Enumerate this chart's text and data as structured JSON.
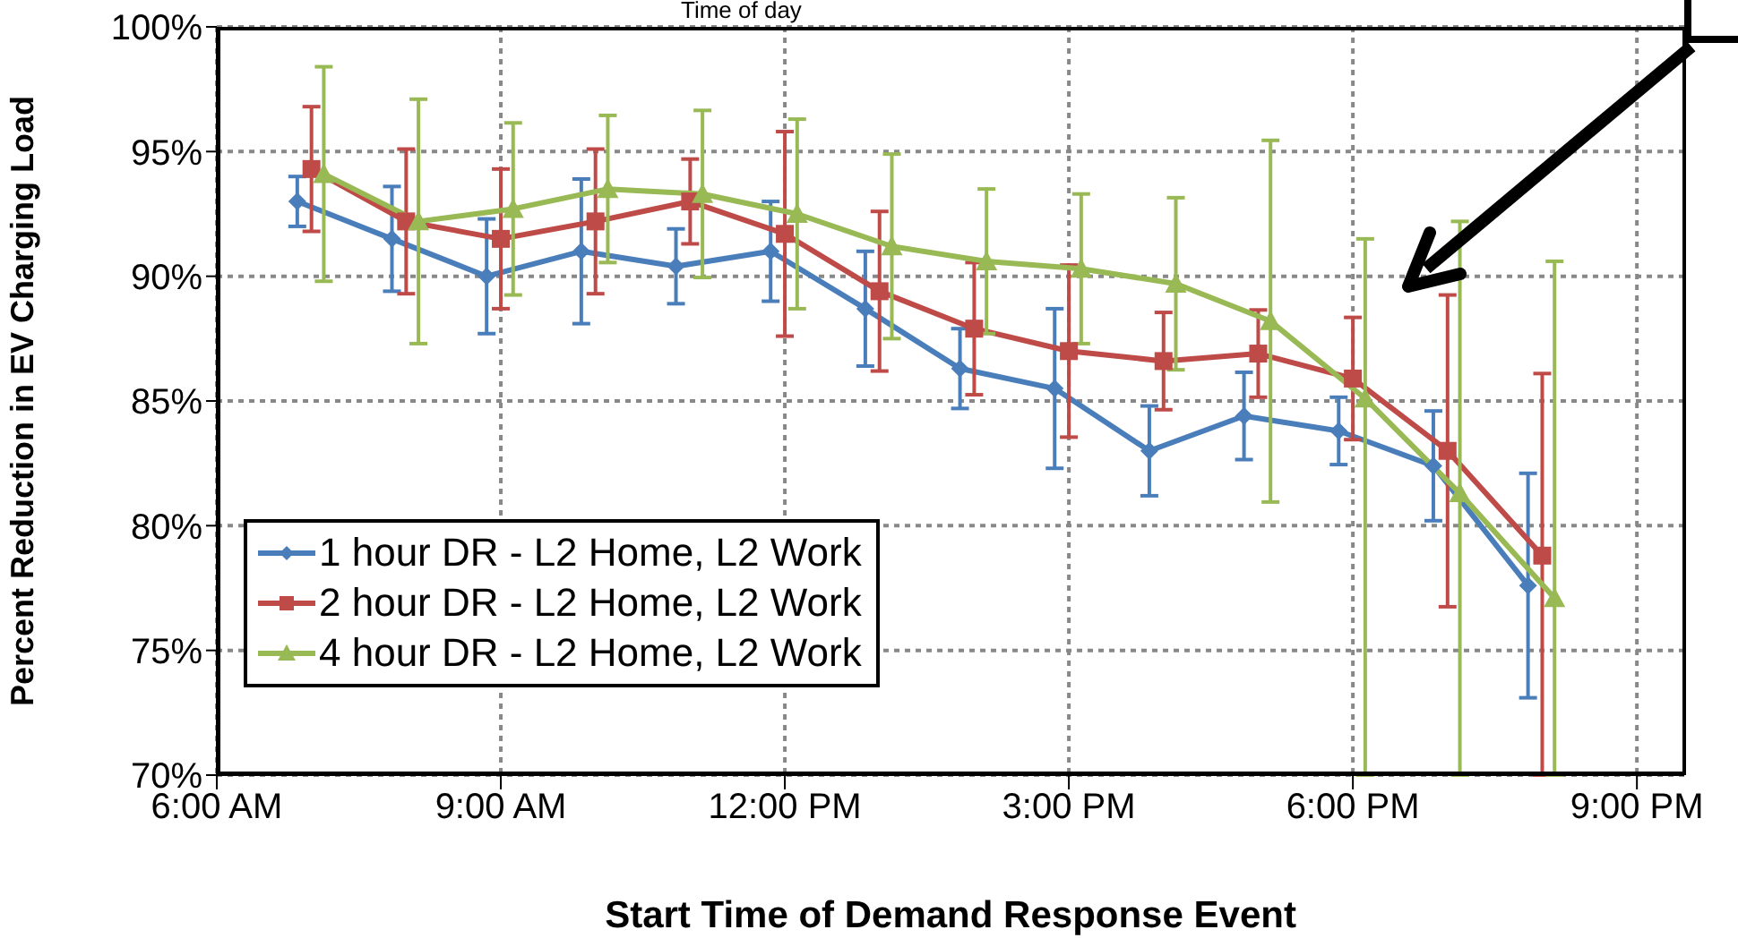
{
  "chart_data": {
    "type": "line",
    "xlabel": "Start Time of Demand Response Event",
    "ylabel": "Percent Reduction in EV Charging Load",
    "annotations": [
      "Time of day"
    ],
    "xlim": [
      6,
      21.5
    ],
    "xticks": [
      {
        "value": 6,
        "label": "6:00 AM"
      },
      {
        "value": 9,
        "label": "9:00 AM"
      },
      {
        "value": 12,
        "label": "12:00 PM"
      },
      {
        "value": 15,
        "label": "3:00 PM"
      },
      {
        "value": 18,
        "label": "6:00 PM"
      },
      {
        "value": 21,
        "label": "9:00 PM"
      }
    ],
    "ylim": [
      70,
      100
    ],
    "yticks": [
      {
        "value": 70,
        "label": "70%"
      },
      {
        "value": 75,
        "label": "75%"
      },
      {
        "value": 80,
        "label": "80%"
      },
      {
        "value": 85,
        "label": "85%"
      },
      {
        "value": 90,
        "label": "90%"
      },
      {
        "value": 95,
        "label": "95%"
      },
      {
        "value": 100,
        "label": "100%"
      }
    ],
    "grid": true,
    "legend": "bottom left",
    "series": [
      {
        "name": "1 hour DR - L2 Home, L2 Work",
        "color": "#4a7ebb",
        "marker": "diamond",
        "x": [
          6.85,
          7.85,
          8.85,
          9.85,
          10.85,
          11.85,
          12.85,
          13.85,
          14.85,
          15.85,
          16.85,
          17.85,
          18.85,
          19.85
        ],
        "values": [
          93.0,
          91.5,
          90.0,
          91.0,
          90.4,
          91.0,
          88.7,
          86.3,
          85.5,
          83.0,
          84.4,
          83.8,
          82.4,
          77.6
        ],
        "errors": [
          1.0,
          2.1,
          2.3,
          2.9,
          1.5,
          2.0,
          2.3,
          1.6,
          3.2,
          1.8,
          1.75,
          1.35,
          2.2,
          4.5
        ]
      },
      {
        "name": "2 hour DR - L2 Home, L2 Work",
        "color": "#be4b48",
        "marker": "square",
        "x": [
          7,
          8,
          9,
          10,
          11,
          12,
          13,
          14,
          15,
          16,
          17,
          18,
          19,
          20
        ],
        "values": [
          94.3,
          92.2,
          91.5,
          92.2,
          93.0,
          91.7,
          89.4,
          87.9,
          87.0,
          86.6,
          86.9,
          85.9,
          83.0,
          78.8
        ],
        "errors": [
          2.5,
          2.9,
          2.8,
          2.9,
          1.7,
          4.1,
          3.2,
          2.65,
          3.45,
          1.95,
          1.75,
          2.45,
          6.25,
          [
            70,
            86.1
          ]
        ]
      },
      {
        "name": "4 hour DR - L2 Home, L2 Work",
        "color": "#98b954",
        "marker": "triangle",
        "x": [
          7.13,
          8.13,
          9.13,
          10.13,
          11.13,
          12.13,
          13.13,
          14.13,
          15.13,
          16.13,
          17.13,
          18.13,
          19.13,
          20.13
        ],
        "values": [
          94.1,
          92.2,
          92.7,
          93.5,
          93.3,
          92.5,
          91.2,
          90.6,
          90.3,
          89.7,
          88.2,
          85.1,
          81.3,
          77.1
        ],
        "errors": [
          4.3,
          4.9,
          3.45,
          2.95,
          3.35,
          3.8,
          3.7,
          2.9,
          3.0,
          3.45,
          7.25,
          [
            70,
            91.5
          ],
          [
            70,
            92.2
          ],
          [
            70,
            90.6
          ]
        ]
      }
    ]
  }
}
